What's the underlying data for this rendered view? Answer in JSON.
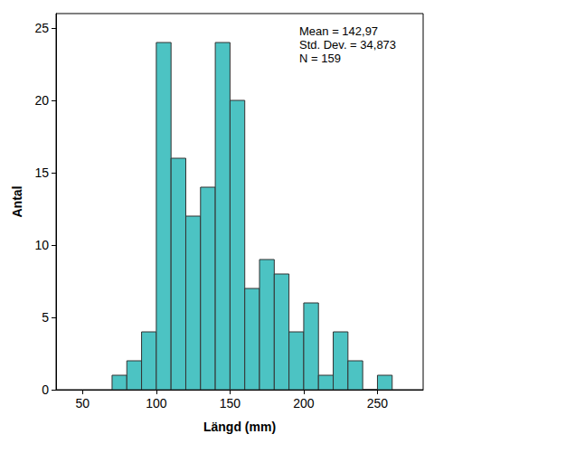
{
  "chart_data": {
    "type": "histogram",
    "x_label": "Längd (mm)",
    "y_label": "Antal",
    "bins": [
      70,
      80,
      90,
      100,
      110,
      120,
      130,
      140,
      150,
      160,
      170,
      180,
      190,
      200,
      210,
      220,
      230,
      240,
      250,
      260
    ],
    "values": [
      1,
      2,
      4,
      24,
      16,
      12,
      14,
      24,
      20,
      7,
      9,
      8,
      4,
      6,
      1,
      4,
      2,
      0,
      1
    ],
    "color": "#4cc3c3",
    "xlim": [
      32,
      281
    ],
    "xticks": [
      50,
      100,
      150,
      200,
      250
    ],
    "ylim": [
      0,
      26
    ],
    "yticks": [
      0,
      5,
      10,
      15,
      20,
      25
    ],
    "grid": false,
    "annotations": [
      "Mean = 142,97",
      "Std. Dev. = 34,873",
      "N = 159"
    ]
  }
}
